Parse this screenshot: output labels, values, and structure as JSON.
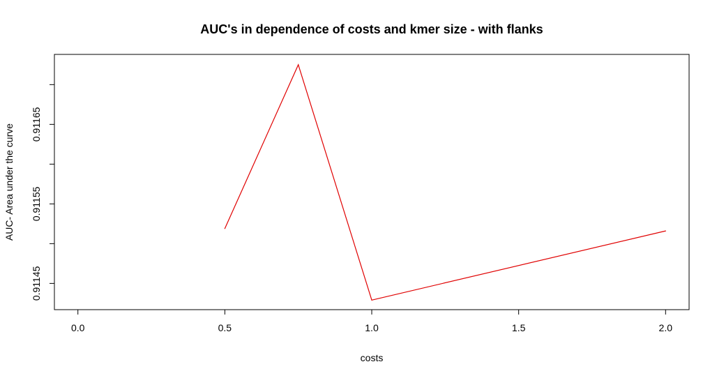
{
  "chart_data": {
    "type": "line",
    "title": "AUC's in dependence of costs and kmer size - with flanks",
    "xlabel": "costs",
    "ylabel": "AUC- Area under the curve",
    "xlim": [
      -0.08,
      2.08
    ],
    "ylim": [
      0.911417,
      0.911738
    ],
    "x_ticks": [
      0.0,
      0.5,
      1.0,
      1.5,
      2.0
    ],
    "x_tick_labels": [
      "0.0",
      "0.5",
      "1.0",
      "1.5",
      "2.0"
    ],
    "y_ticks": [
      0.91145,
      0.91155,
      0.91165
    ],
    "y_tick_labels": [
      "0.91145",
      "0.91155",
      "0.91165"
    ],
    "grid": false,
    "legend": "none",
    "series": [
      {
        "color": "#e00000",
        "x": [
          0.5,
          0.75,
          1.0,
          2.0
        ],
        "y": [
          0.911519,
          0.911725,
          0.911429,
          0.911516
        ]
      }
    ]
  }
}
